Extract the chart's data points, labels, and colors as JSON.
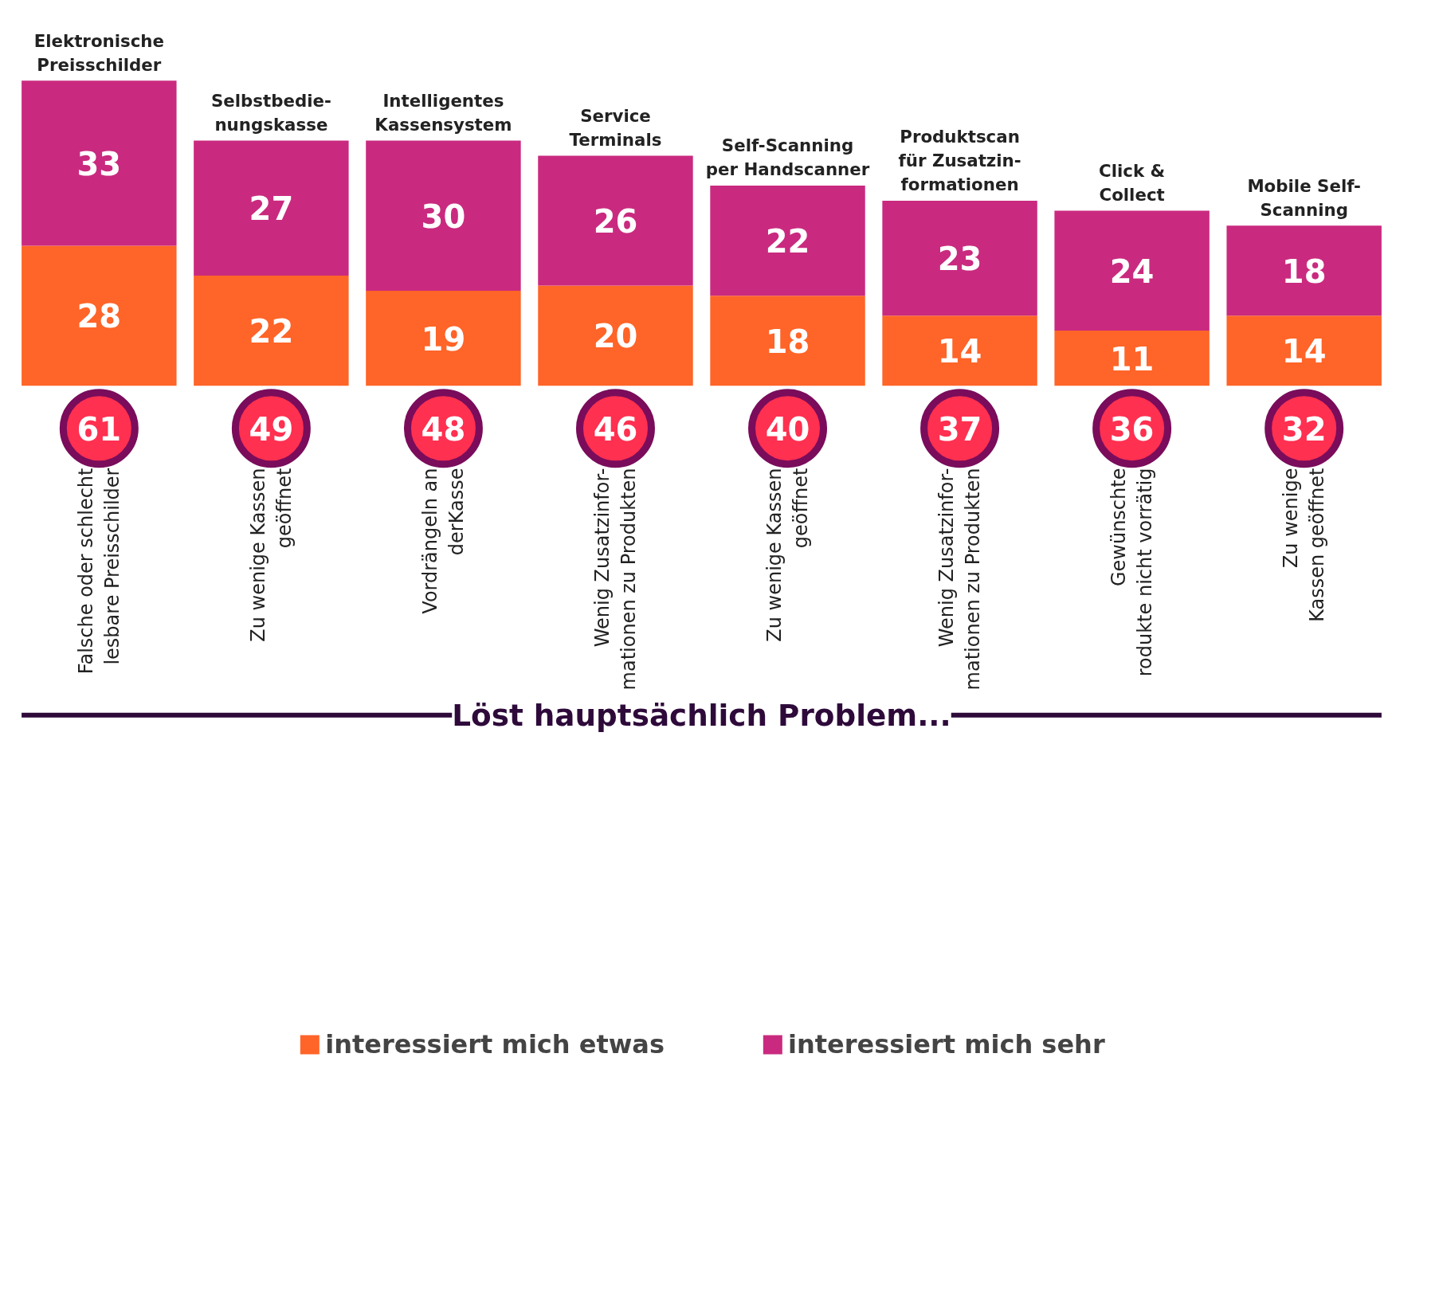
{
  "chart_data": {
    "type": "bar",
    "stacked": true,
    "data_labels": true,
    "legend": "bottom",
    "tick_labels": false,
    "grid": false,
    "categories": [
      "Elektronische\nPreisschilder",
      "Selbstbedie-\nnungskasse",
      "Intelligentes\nKassensystem",
      "Service\nTerminals",
      "Self-Scanning\nper Handscanner",
      "Produktscan\nfür Zusatzin-\nformationen",
      "Click &\nCollect",
      "Mobile Self-\nScanning"
    ],
    "series": [
      {
        "name": "interessiert mich etwas",
        "color": "#ff6428",
        "values": [
          28,
          22,
          19,
          20,
          18,
          14,
          11,
          14
        ]
      },
      {
        "name": "interessiert mich sehr",
        "color": "#c92a7f",
        "values": [
          33,
          27,
          30,
          26,
          22,
          23,
          24,
          18
        ]
      }
    ],
    "totals": [
      "61",
      "49",
      "48",
      "46",
      "40",
      "37",
      "36",
      "32"
    ],
    "annotations": [
      "Falsche oder schlecht\nlesbare Preisschilder",
      "Zu wenige Kassen\ngeöffnet",
      "Vordrängeln an\nderKasse",
      "Wenig Zusatzinfor-\nmationen zu Produkten",
      "Zu wenige Kassen\ngeöffnet",
      "Wenig Zusatzinfor-\nmationen zu Produkten",
      "Gewünschte\nrodukte nicht vorrätig",
      "Zu wenige\nKassen geöffnet",
      "Löst hauptsächlich Problem..."
    ]
  }
}
